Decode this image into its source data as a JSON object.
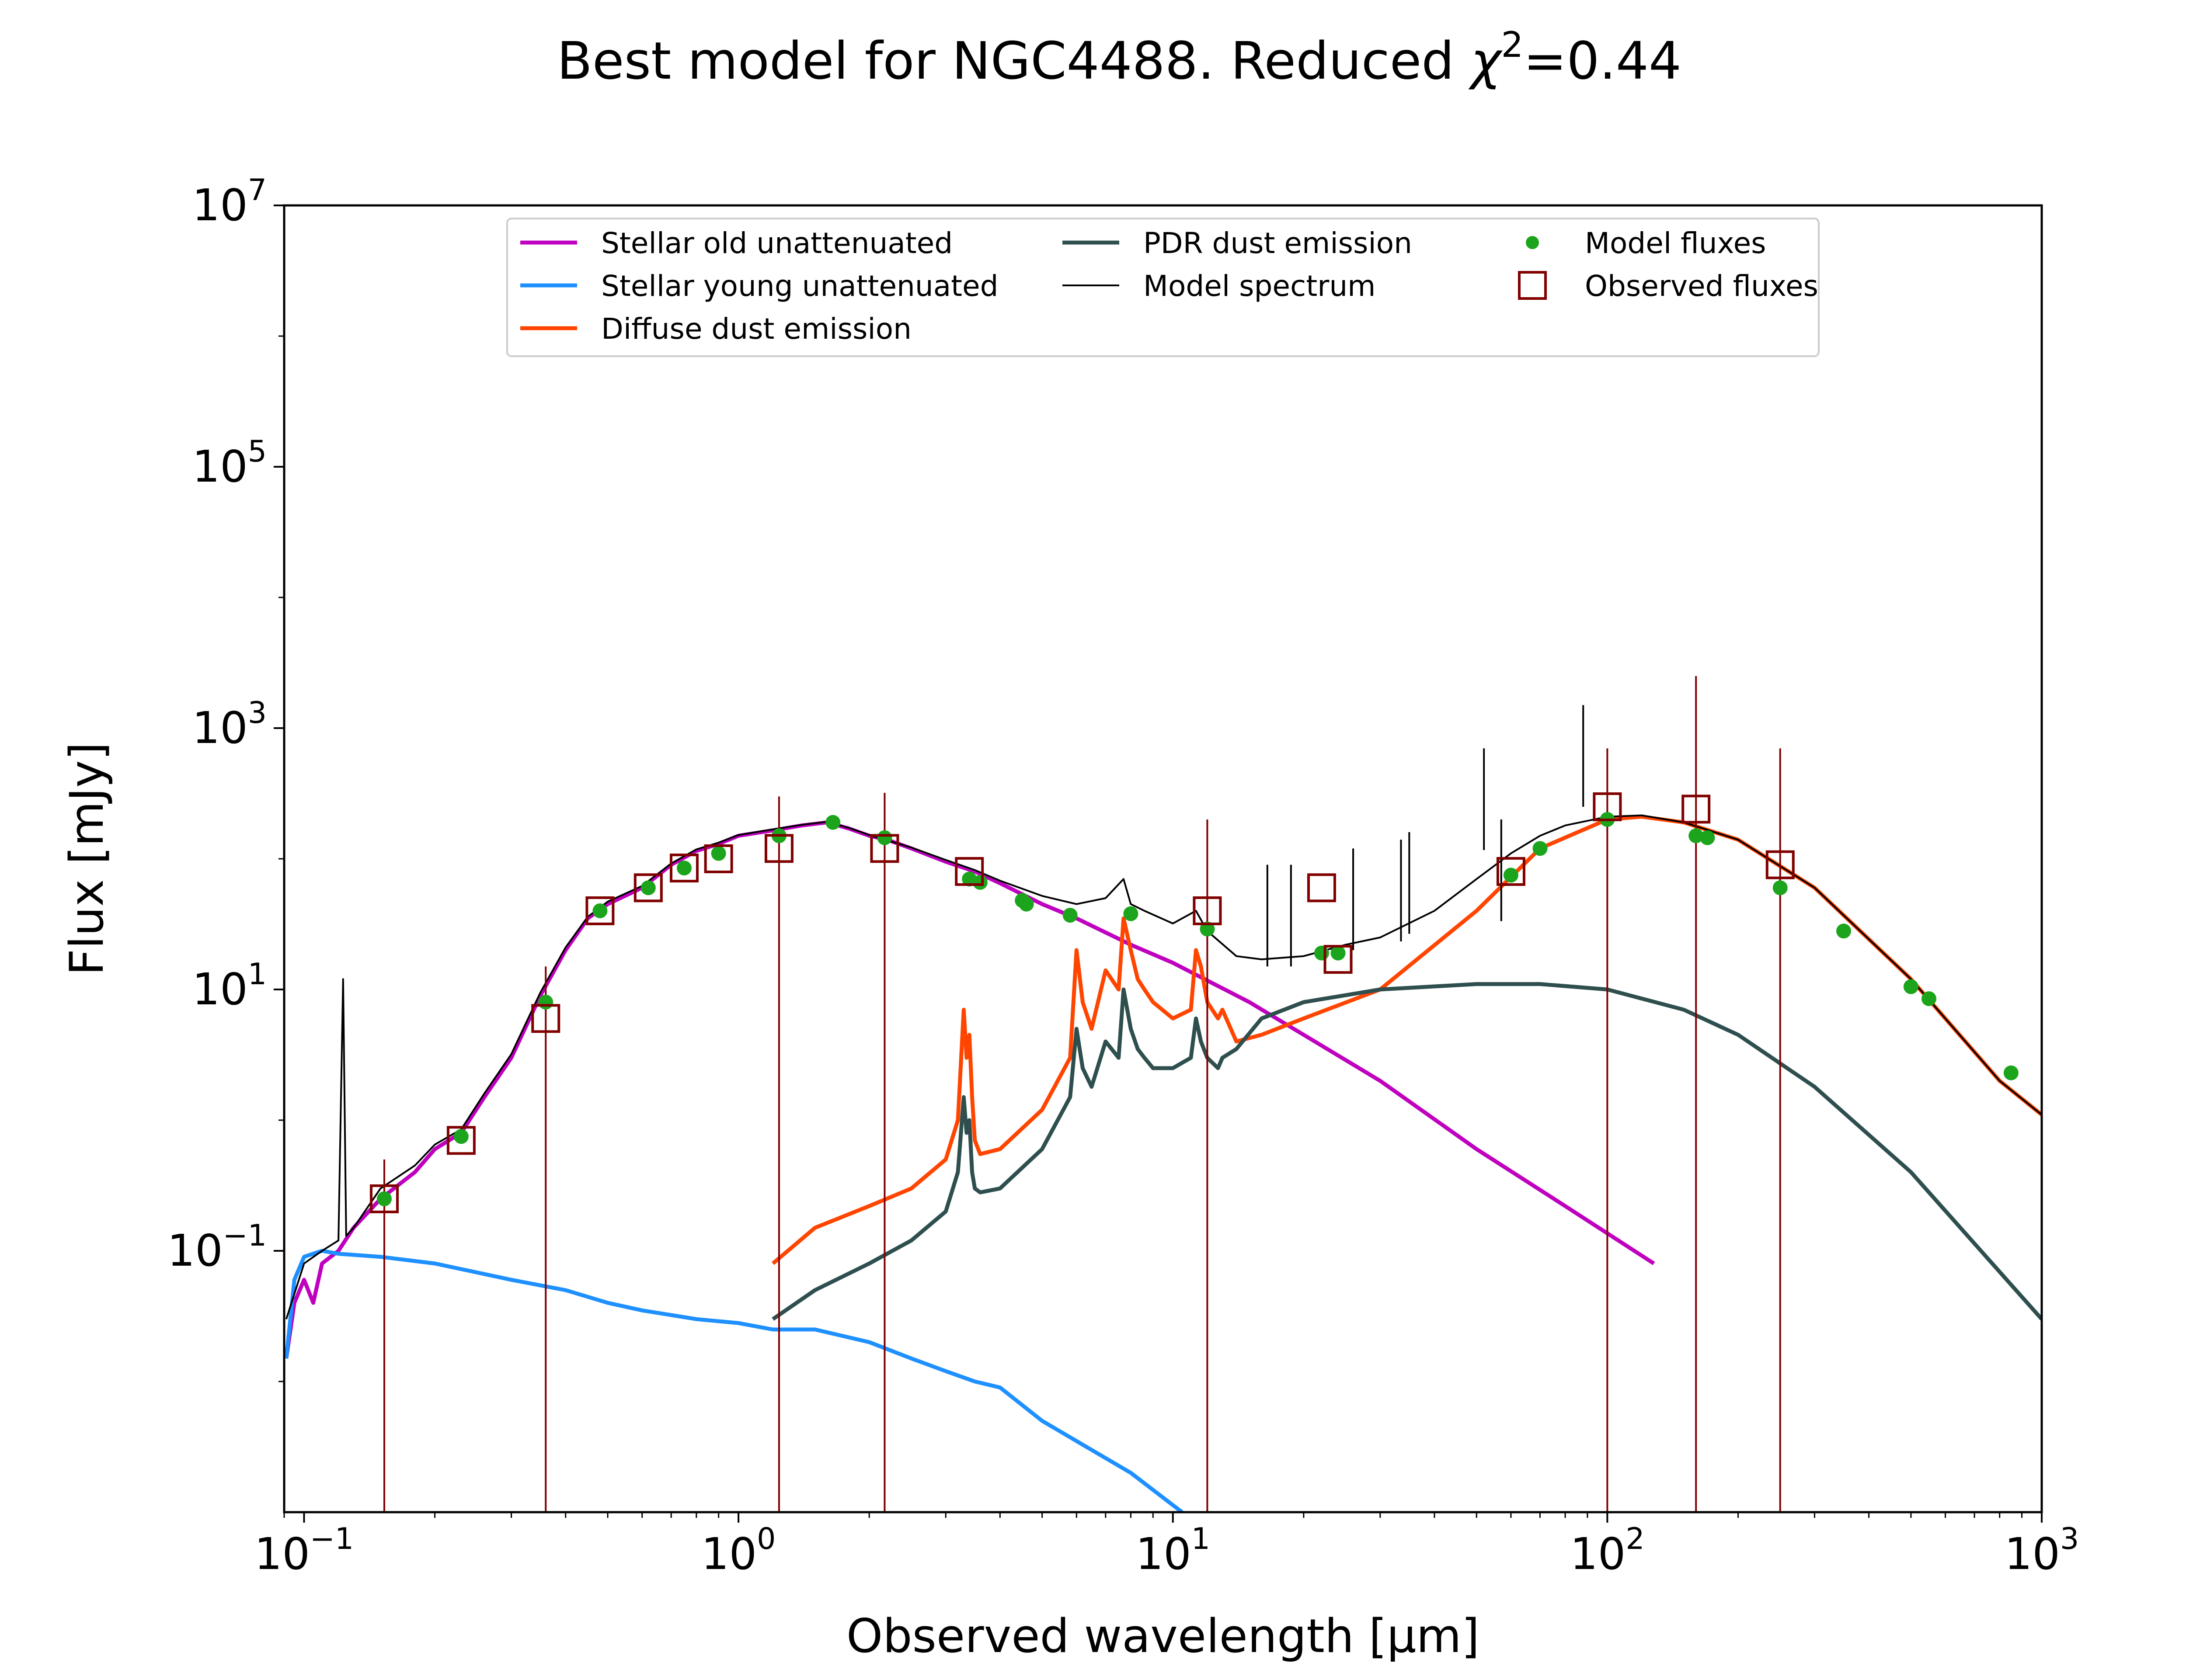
{
  "chart_data": {
    "type": "line",
    "title_prefix": "Best model for NGC4488. Reduced ",
    "title_symbol": "χ",
    "title_sup": "2",
    "title_suffix": "=0.44",
    "xlabel": "Observed wavelength [μm]",
    "ylabel": "Flux [mJy]",
    "xscale": "log",
    "yscale": "log",
    "xlim": [
      0.09,
      1000
    ],
    "ylim": [
      0.001,
      10000000
    ],
    "grid": false,
    "legend_position": "top-center",
    "x_ticks": [
      {
        "base": "10",
        "exp": "−1",
        "value": 0.1
      },
      {
        "base": "10",
        "exp": "0",
        "value": 1
      },
      {
        "base": "10",
        "exp": "1",
        "value": 10
      },
      {
        "base": "10",
        "exp": "2",
        "value": 100
      },
      {
        "base": "10",
        "exp": "3",
        "value": 1000
      }
    ],
    "y_ticks": [
      {
        "base": "10",
        "exp": "−1",
        "value": 0.1
      },
      {
        "base": "10",
        "exp": "1",
        "value": 10
      },
      {
        "base": "10",
        "exp": "3",
        "value": 1000
      },
      {
        "base": "10",
        "exp": "5",
        "value": 100000
      },
      {
        "base": "10",
        "exp": "7",
        "value": 10000000
      }
    ],
    "legend": [
      {
        "label": "Stellar old unattenuated",
        "kind": "line",
        "color": "#bf00bf"
      },
      {
        "label": "Stellar young unattenuated",
        "kind": "line",
        "color": "#1e90ff"
      },
      {
        "label": "Diffuse dust emission",
        "kind": "line",
        "color": "#ff4500"
      },
      {
        "label": "PDR dust emission",
        "kind": "line",
        "color": "#2f4f4f"
      },
      {
        "label": "Model spectrum",
        "kind": "thinline",
        "color": "#000000"
      },
      {
        "label": "Model fluxes",
        "kind": "dot",
        "color": "#1ca51c"
      },
      {
        "label": "Observed fluxes",
        "kind": "square",
        "color": "#800000"
      }
    ],
    "series": [
      {
        "name": "Stellar old unattenuated",
        "color": "#bf00bf",
        "x": [
          0.091,
          0.095,
          0.1,
          0.105,
          0.11,
          0.12,
          0.13,
          0.15,
          0.18,
          0.2,
          0.23,
          0.26,
          0.3,
          0.35,
          0.4,
          0.45,
          0.5,
          0.6,
          0.7,
          0.8,
          0.9,
          1.0,
          1.2,
          1.4,
          1.6,
          1.8,
          2.0,
          2.2,
          2.5,
          3.0,
          3.5,
          4.0,
          5.0,
          6.0,
          8.0,
          10,
          15,
          20,
          30,
          50,
          80,
          128
        ],
        "y": [
          0.015,
          0.04,
          0.06,
          0.04,
          0.08,
          0.1,
          0.15,
          0.25,
          0.4,
          0.6,
          0.8,
          1.5,
          3,
          9,
          20,
          35,
          45,
          60,
          90,
          115,
          130,
          150,
          165,
          180,
          190,
          170,
          150,
          140,
          120,
          95,
          80,
          65,
          45,
          35,
          22,
          16,
          8,
          4.5,
          2,
          0.6,
          0.22,
          0.08
        ]
      },
      {
        "name": "Stellar young unattenuated",
        "color": "#1e90ff",
        "x": [
          0.091,
          0.095,
          0.1,
          0.11,
          0.12,
          0.15,
          0.2,
          0.3,
          0.4,
          0.5,
          0.6,
          0.8,
          1.0,
          1.2,
          1.5,
          2.0,
          2.5,
          3.0,
          3.5,
          4.0,
          5.0,
          6.0,
          8.0,
          10.5
        ],
        "y": [
          0.015,
          0.06,
          0.09,
          0.1,
          0.095,
          0.09,
          0.08,
          0.06,
          0.05,
          0.04,
          0.035,
          0.03,
          0.028,
          0.025,
          0.025,
          0.02,
          0.015,
          0.012,
          0.01,
          0.009,
          0.005,
          0.0035,
          0.002,
          0.001
        ]
      },
      {
        "name": "Diffuse dust emission",
        "color": "#ff4500",
        "x": [
          1.2,
          1.5,
          2.0,
          2.5,
          3.0,
          3.2,
          3.3,
          3.35,
          3.4,
          3.45,
          3.5,
          3.6,
          4.0,
          5.0,
          5.8,
          6.0,
          6.2,
          6.5,
          7.0,
          7.5,
          7.7,
          8.0,
          8.3,
          8.6,
          9.0,
          10,
          11,
          11.3,
          11.6,
          12,
          12.7,
          13,
          14,
          16,
          20,
          30,
          50,
          70,
          100,
          120,
          150,
          200,
          300,
          500,
          800,
          1000
        ],
        "y": [
          0.08,
          0.15,
          0.22,
          0.3,
          0.5,
          1.0,
          7.0,
          3.0,
          4.5,
          1.5,
          0.7,
          0.55,
          0.6,
          1.2,
          3.0,
          20,
          8,
          5,
          14,
          10,
          35,
          20,
          12,
          10,
          8,
          6,
          7,
          20,
          15,
          8,
          6,
          7,
          4,
          4.5,
          6,
          10,
          40,
          120,
          200,
          210,
          190,
          140,
          60,
          12,
          2.0,
          1.1
        ]
      },
      {
        "name": "PDR dust emission",
        "color": "#2f4f4f",
        "x": [
          1.2,
          1.5,
          2.0,
          2.5,
          3.0,
          3.2,
          3.3,
          3.35,
          3.4,
          3.45,
          3.5,
          3.6,
          4.0,
          5.0,
          5.8,
          6.0,
          6.2,
          6.5,
          7.0,
          7.5,
          7.7,
          8.0,
          8.3,
          8.6,
          9.0,
          10,
          11,
          11.3,
          11.6,
          12,
          12.7,
          13,
          14,
          16,
          20,
          30,
          50,
          70,
          100,
          150,
          200,
          300,
          500,
          1000
        ],
        "y": [
          0.03,
          0.05,
          0.08,
          0.12,
          0.2,
          0.4,
          1.5,
          0.8,
          1.0,
          0.4,
          0.3,
          0.28,
          0.3,
          0.6,
          1.5,
          5,
          2.5,
          1.8,
          4,
          3,
          10,
          5,
          3.5,
          3,
          2.5,
          2.5,
          3,
          6,
          4,
          3,
          2.5,
          3,
          3.5,
          6,
          8,
          10,
          11,
          11,
          10,
          7,
          4.5,
          1.8,
          0.4,
          0.03
        ]
      },
      {
        "name": "Model spectrum",
        "color": "#000000",
        "x": [
          0.091,
          0.1,
          0.11,
          0.12,
          0.123,
          0.125,
          0.13,
          0.15,
          0.18,
          0.2,
          0.23,
          0.26,
          0.3,
          0.35,
          0.4,
          0.45,
          0.5,
          0.6,
          0.7,
          0.8,
          0.9,
          1.0,
          1.2,
          1.4,
          1.6,
          1.8,
          2.0,
          2.5,
          3.0,
          3.5,
          4.0,
          5.0,
          6.0,
          7.0,
          7.7,
          8.0,
          8.6,
          10,
          11.3,
          12,
          14,
          16,
          20,
          25,
          30,
          40,
          50,
          60,
          70,
          80,
          100,
          120,
          150,
          200,
          300,
          500,
          800,
          1000
        ],
        "y": [
          0.03,
          0.08,
          0.1,
          0.12,
          12,
          0.13,
          0.15,
          0.3,
          0.45,
          0.65,
          0.85,
          1.6,
          3.2,
          9.5,
          21,
          36,
          47,
          62,
          92,
          118,
          133,
          152,
          168,
          182,
          192,
          172,
          152,
          122,
          98,
          82,
          68,
          52,
          45,
          50,
          70,
          45,
          40,
          32,
          40,
          28,
          18,
          17,
          18,
          22,
          25,
          40,
          70,
          110,
          150,
          180,
          210,
          215,
          190,
          140,
          60,
          12,
          2.0,
          1.1
        ]
      }
    ],
    "emission_lines": [
      {
        "x": 16.5,
        "y": 90
      },
      {
        "x": 18.7,
        "y": 90
      },
      {
        "x": 26,
        "y": 120
      },
      {
        "x": 33.5,
        "y": 140
      },
      {
        "x": 35,
        "y": 160
      },
      {
        "x": 52,
        "y": 700
      },
      {
        "x": 57,
        "y": 200
      },
      {
        "x": 88,
        "y": 1500
      }
    ],
    "model_fluxes": {
      "x": [
        0.153,
        0.23,
        0.36,
        0.48,
        0.62,
        0.75,
        0.9,
        1.24,
        1.65,
        2.17,
        3.4,
        3.6,
        4.5,
        4.6,
        5.8,
        8.0,
        12,
        22,
        24,
        60,
        70,
        100,
        160,
        170,
        250,
        350,
        500,
        550,
        850
      ],
      "y": [
        0.25,
        0.75,
        8,
        40,
        60,
        85,
        110,
        150,
        190,
        145,
        70,
        66,
        48,
        45,
        37,
        38,
        29,
        19,
        19,
        75,
        120,
        200,
        150,
        145,
        60,
        28,
        10.5,
        8.5,
        2.3
      ]
    },
    "observed_fluxes": [
      {
        "x": 0.153,
        "y": 0.25,
        "hi": 0.5
      },
      {
        "x": 0.23,
        "y": 0.7,
        "hi": 0
      },
      {
        "x": 0.36,
        "y": 6,
        "hi": 15
      },
      {
        "x": 0.48,
        "y": 40,
        "hi": 0
      },
      {
        "x": 0.62,
        "y": 60,
        "hi": 0
      },
      {
        "x": 0.75,
        "y": 85,
        "hi": 0
      },
      {
        "x": 0.9,
        "y": 100,
        "hi": 0
      },
      {
        "x": 1.24,
        "y": 120,
        "hi": 300
      },
      {
        "x": 2.17,
        "y": 120,
        "hi": 320
      },
      {
        "x": 3.4,
        "y": 80,
        "hi": 0
      },
      {
        "x": 12,
        "y": 40,
        "hi": 200
      },
      {
        "x": 22,
        "y": 60,
        "hi": 0
      },
      {
        "x": 24,
        "y": 17,
        "hi": 0
      },
      {
        "x": 60,
        "y": 80,
        "hi": 0
      },
      {
        "x": 100,
        "y": 250,
        "hi": 700
      },
      {
        "x": 160,
        "y": 240,
        "hi": 2500
      },
      {
        "x": 250,
        "y": 90,
        "hi": 700
      }
    ]
  }
}
